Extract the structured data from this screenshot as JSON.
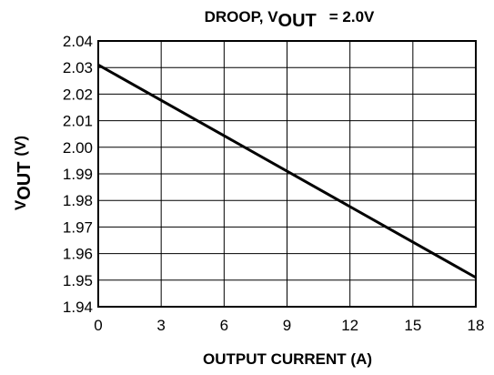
{
  "chart_data": {
    "type": "line",
    "title": "DROOP, V",
    "title_subscript": "OUT",
    "title_suffix": "= 2.0V",
    "x_label": "OUTPUT CURRENT (A)",
    "y_label": "V",
    "y_label_subscript": "OUT",
    "y_label_suffix": "(V)",
    "x": [
      0,
      18
    ],
    "series": [
      {
        "color": "#000000",
        "values": [
          2.031,
          1.951
        ]
      }
    ],
    "xlim": [
      0,
      18
    ],
    "xticks": [
      0,
      3,
      6,
      9,
      12,
      15,
      18
    ],
    "ylim": [
      1.94,
      2.04
    ],
    "yticks": [
      1.94,
      1.95,
      1.96,
      1.97,
      1.98,
      1.99,
      {
        "value": 2.0,
        "label": "2.00"
      },
      2.01,
      2.02,
      2.03,
      2.04
    ],
    "grid": true
  }
}
